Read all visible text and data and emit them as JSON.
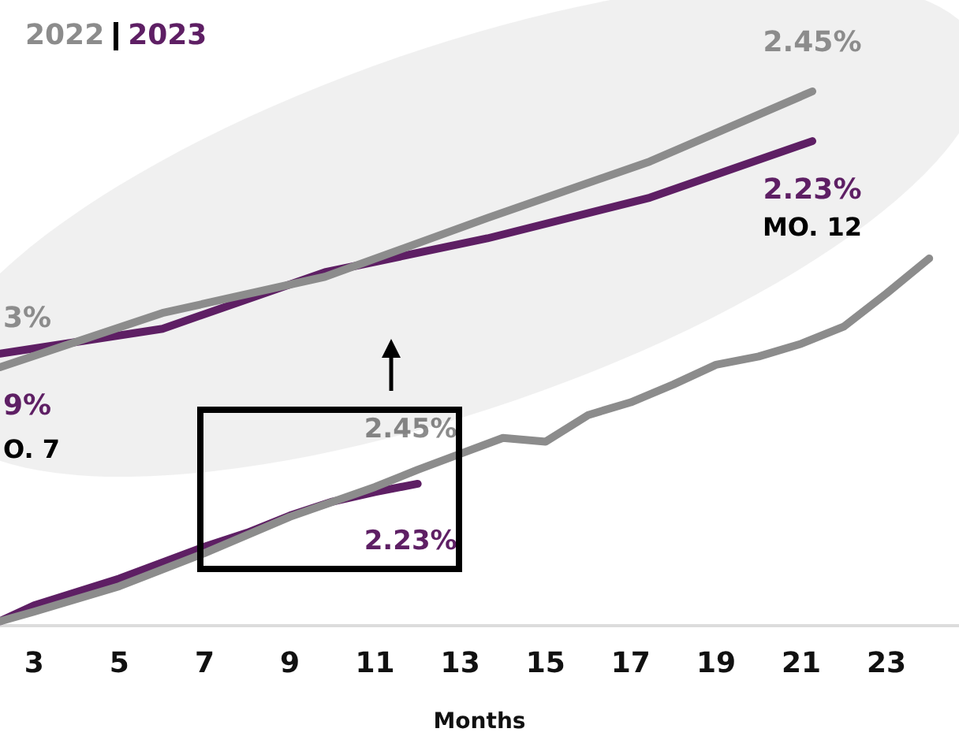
{
  "chart_data": [
    {
      "type": "line",
      "xlabel": "Months",
      "legend": "top left",
      "tick_labels": "x",
      "grid": false,
      "marker": "none",
      "line_style": "solid",
      "xlim": [
        2.2,
        24.7
      ],
      "xticks": [
        3,
        5,
        7,
        9,
        11,
        13,
        15,
        17,
        19,
        21,
        23
      ],
      "series": [
        {
          "name": "2022",
          "color": "#8c8c8c",
          "x": [
            2.2,
            3,
            5,
            7,
            9,
            11,
            12,
            13,
            14,
            15,
            16,
            17,
            18,
            19,
            20,
            21,
            22,
            23,
            24
          ],
          "values": [
            0.07,
            0.22,
            0.62,
            1.14,
            1.71,
            2.18,
            2.45,
            2.7,
            2.95,
            2.89,
            3.31,
            3.51,
            3.79,
            4.1,
            4.23,
            4.43,
            4.7,
            5.22,
            5.77
          ],
          "value_labels": [
            null,
            null,
            null,
            null,
            null,
            null,
            "2.45%",
            null,
            null,
            null,
            null,
            null,
            null,
            null,
            null,
            null,
            null,
            null,
            null
          ]
        },
        {
          "name": "2023",
          "color": "#5e1f64",
          "x": [
            2.2,
            3,
            5,
            7,
            8,
            9,
            10,
            11,
            12
          ],
          "values": [
            0.07,
            0.32,
            0.74,
            1.24,
            1.46,
            1.73,
            1.95,
            2.1,
            2.23
          ],
          "value_labels": [
            null,
            null,
            null,
            null,
            null,
            null,
            null,
            null,
            "2.23%"
          ]
        }
      ]
    },
    {
      "type": "line",
      "tick_labels": false,
      "grid": false,
      "marker": "none",
      "line_style": "solid",
      "categories": [
        null,
        null,
        null,
        null,
        null,
        null
      ],
      "annotations": [
        "3%",
        "9%",
        "O. 7",
        "MO. 12"
      ],
      "series": [
        {
          "color": "#8c8c8c",
          "values": [
            1.23,
            1.47,
            1.63,
            1.89,
            2.14,
            2.45
          ],
          "value_labels": [
            null,
            null,
            null,
            null,
            null,
            "2.45%"
          ]
        },
        {
          "color": "#5e1f64",
          "values": [
            1.29,
            1.4,
            1.65,
            1.8,
            1.98,
            2.23
          ],
          "value_labels": [
            null,
            null,
            null,
            null,
            null,
            "2.23%"
          ]
        }
      ]
    }
  ]
}
